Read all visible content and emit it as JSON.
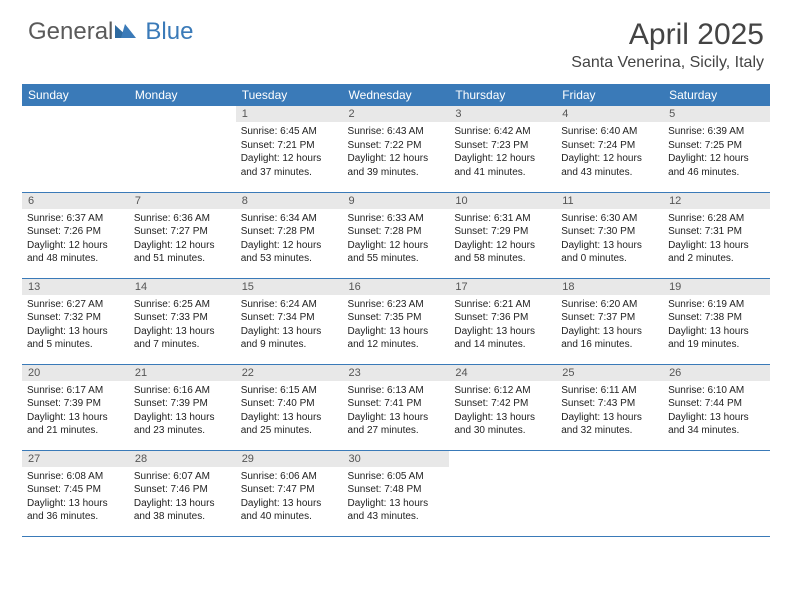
{
  "brand": {
    "part1": "General",
    "part2": "Blue"
  },
  "title": "April 2025",
  "location": "Santa Venerina, Sicily, Italy",
  "header_bg": "#3a7ab8",
  "dayHeaders": [
    "Sunday",
    "Monday",
    "Tuesday",
    "Wednesday",
    "Thursday",
    "Friday",
    "Saturday"
  ],
  "weeks": [
    [
      null,
      null,
      {
        "n": "1",
        "sr": "6:45 AM",
        "ss": "7:21 PM",
        "dl": "12 hours and 37 minutes."
      },
      {
        "n": "2",
        "sr": "6:43 AM",
        "ss": "7:22 PM",
        "dl": "12 hours and 39 minutes."
      },
      {
        "n": "3",
        "sr": "6:42 AM",
        "ss": "7:23 PM",
        "dl": "12 hours and 41 minutes."
      },
      {
        "n": "4",
        "sr": "6:40 AM",
        "ss": "7:24 PM",
        "dl": "12 hours and 43 minutes."
      },
      {
        "n": "5",
        "sr": "6:39 AM",
        "ss": "7:25 PM",
        "dl": "12 hours and 46 minutes."
      }
    ],
    [
      {
        "n": "6",
        "sr": "6:37 AM",
        "ss": "7:26 PM",
        "dl": "12 hours and 48 minutes."
      },
      {
        "n": "7",
        "sr": "6:36 AM",
        "ss": "7:27 PM",
        "dl": "12 hours and 51 minutes."
      },
      {
        "n": "8",
        "sr": "6:34 AM",
        "ss": "7:28 PM",
        "dl": "12 hours and 53 minutes."
      },
      {
        "n": "9",
        "sr": "6:33 AM",
        "ss": "7:28 PM",
        "dl": "12 hours and 55 minutes."
      },
      {
        "n": "10",
        "sr": "6:31 AM",
        "ss": "7:29 PM",
        "dl": "12 hours and 58 minutes."
      },
      {
        "n": "11",
        "sr": "6:30 AM",
        "ss": "7:30 PM",
        "dl": "13 hours and 0 minutes."
      },
      {
        "n": "12",
        "sr": "6:28 AM",
        "ss": "7:31 PM",
        "dl": "13 hours and 2 minutes."
      }
    ],
    [
      {
        "n": "13",
        "sr": "6:27 AM",
        "ss": "7:32 PM",
        "dl": "13 hours and 5 minutes."
      },
      {
        "n": "14",
        "sr": "6:25 AM",
        "ss": "7:33 PM",
        "dl": "13 hours and 7 minutes."
      },
      {
        "n": "15",
        "sr": "6:24 AM",
        "ss": "7:34 PM",
        "dl": "13 hours and 9 minutes."
      },
      {
        "n": "16",
        "sr": "6:23 AM",
        "ss": "7:35 PM",
        "dl": "13 hours and 12 minutes."
      },
      {
        "n": "17",
        "sr": "6:21 AM",
        "ss": "7:36 PM",
        "dl": "13 hours and 14 minutes."
      },
      {
        "n": "18",
        "sr": "6:20 AM",
        "ss": "7:37 PM",
        "dl": "13 hours and 16 minutes."
      },
      {
        "n": "19",
        "sr": "6:19 AM",
        "ss": "7:38 PM",
        "dl": "13 hours and 19 minutes."
      }
    ],
    [
      {
        "n": "20",
        "sr": "6:17 AM",
        "ss": "7:39 PM",
        "dl": "13 hours and 21 minutes."
      },
      {
        "n": "21",
        "sr": "6:16 AM",
        "ss": "7:39 PM",
        "dl": "13 hours and 23 minutes."
      },
      {
        "n": "22",
        "sr": "6:15 AM",
        "ss": "7:40 PM",
        "dl": "13 hours and 25 minutes."
      },
      {
        "n": "23",
        "sr": "6:13 AM",
        "ss": "7:41 PM",
        "dl": "13 hours and 27 minutes."
      },
      {
        "n": "24",
        "sr": "6:12 AM",
        "ss": "7:42 PM",
        "dl": "13 hours and 30 minutes."
      },
      {
        "n": "25",
        "sr": "6:11 AM",
        "ss": "7:43 PM",
        "dl": "13 hours and 32 minutes."
      },
      {
        "n": "26",
        "sr": "6:10 AM",
        "ss": "7:44 PM",
        "dl": "13 hours and 34 minutes."
      }
    ],
    [
      {
        "n": "27",
        "sr": "6:08 AM",
        "ss": "7:45 PM",
        "dl": "13 hours and 36 minutes."
      },
      {
        "n": "28",
        "sr": "6:07 AM",
        "ss": "7:46 PM",
        "dl": "13 hours and 38 minutes."
      },
      {
        "n": "29",
        "sr": "6:06 AM",
        "ss": "7:47 PM",
        "dl": "13 hours and 40 minutes."
      },
      {
        "n": "30",
        "sr": "6:05 AM",
        "ss": "7:48 PM",
        "dl": "13 hours and 43 minutes."
      },
      null,
      null,
      null
    ]
  ],
  "labels": {
    "sunrise": "Sunrise:",
    "sunset": "Sunset:",
    "daylight": "Daylight:"
  }
}
